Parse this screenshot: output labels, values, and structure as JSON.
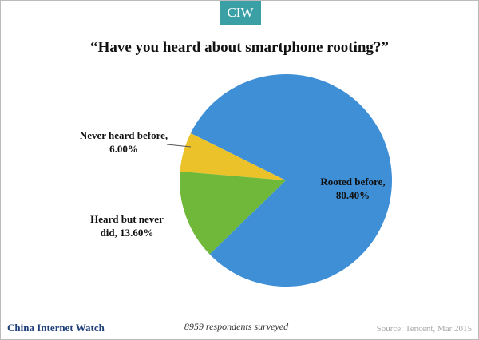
{
  "header": {
    "logo": "CIW"
  },
  "chart_data": {
    "type": "pie",
    "title": "“Have you heard about smartphone rooting?”",
    "values": [
      80.4,
      13.6,
      6.0
    ],
    "value_labels": [
      "Rooted before, 80.40%",
      "Heard but never did, 13.60%",
      "Never heard before, 6.00%"
    ],
    "colors": [
      "#3f8fd6",
      "#6fb83a",
      "#ecc22a"
    ]
  },
  "footer": {
    "brand": "China Internet Watch",
    "note": "8959 respondents surveyed",
    "source": "Source: Tencent, Mar 2015"
  }
}
